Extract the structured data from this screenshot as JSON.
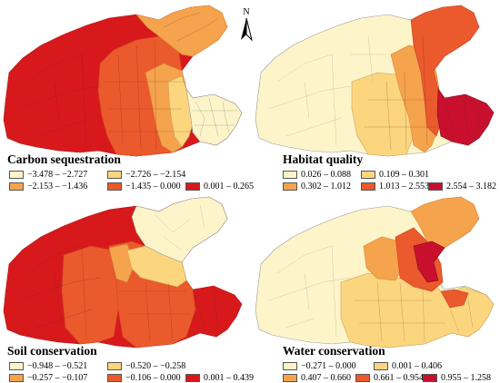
{
  "north_label": "N",
  "panels": [
    {
      "title": "Carbon sequestration",
      "legend": [
        {
          "label": "−3.478 – −2.727",
          "color": "#fdf5c9"
        },
        {
          "label": "−2.726 – −2.154",
          "color": "#fbd67f"
        },
        {
          "label": "−2.153 – −1.436",
          "color": "#f5a34d"
        },
        {
          "label": "−1.435 – 0.000",
          "color": "#ea5a2c"
        },
        {
          "label": "0.001 – 0.265",
          "color": "#d7191c"
        }
      ]
    },
    {
      "title": "Habitat quality",
      "legend": [
        {
          "label": "0.026 – 0.088",
          "color": "#fdf5c9"
        },
        {
          "label": "0.109 – 0.301",
          "color": "#fbd67f"
        },
        {
          "label": "0.302 – 1.012",
          "color": "#f5a34d"
        },
        {
          "label": "1.013 – 2.553",
          "color": "#ea5a2c"
        },
        {
          "label": "2.554 – 3.182",
          "color": "#c8102e"
        }
      ]
    },
    {
      "title": "Soil conservation",
      "legend": [
        {
          "label": "−0.948 – −0.521",
          "color": "#fdf5c9"
        },
        {
          "label": "−0.520 – −0.258",
          "color": "#fbd67f"
        },
        {
          "label": "−0.257 – −0.107",
          "color": "#f5a34d"
        },
        {
          "label": "−0.106 – 0.000",
          "color": "#ea5a2c"
        },
        {
          "label": "0.001 – 0.439",
          "color": "#d7191c"
        }
      ]
    },
    {
      "title": "Water conservation",
      "legend": [
        {
          "label": "−0.271 – 0.000",
          "color": "#fdf5c9"
        },
        {
          "label": "0.001 – 0.406",
          "color": "#fbd67f"
        },
        {
          "label": "0.407 – 0.660",
          "color": "#f5a34d"
        },
        {
          "label": "0.661 – 0.954",
          "color": "#ea5a2c"
        },
        {
          "label": "0.955 – 1.258",
          "color": "#c8102e"
        }
      ]
    }
  ]
}
